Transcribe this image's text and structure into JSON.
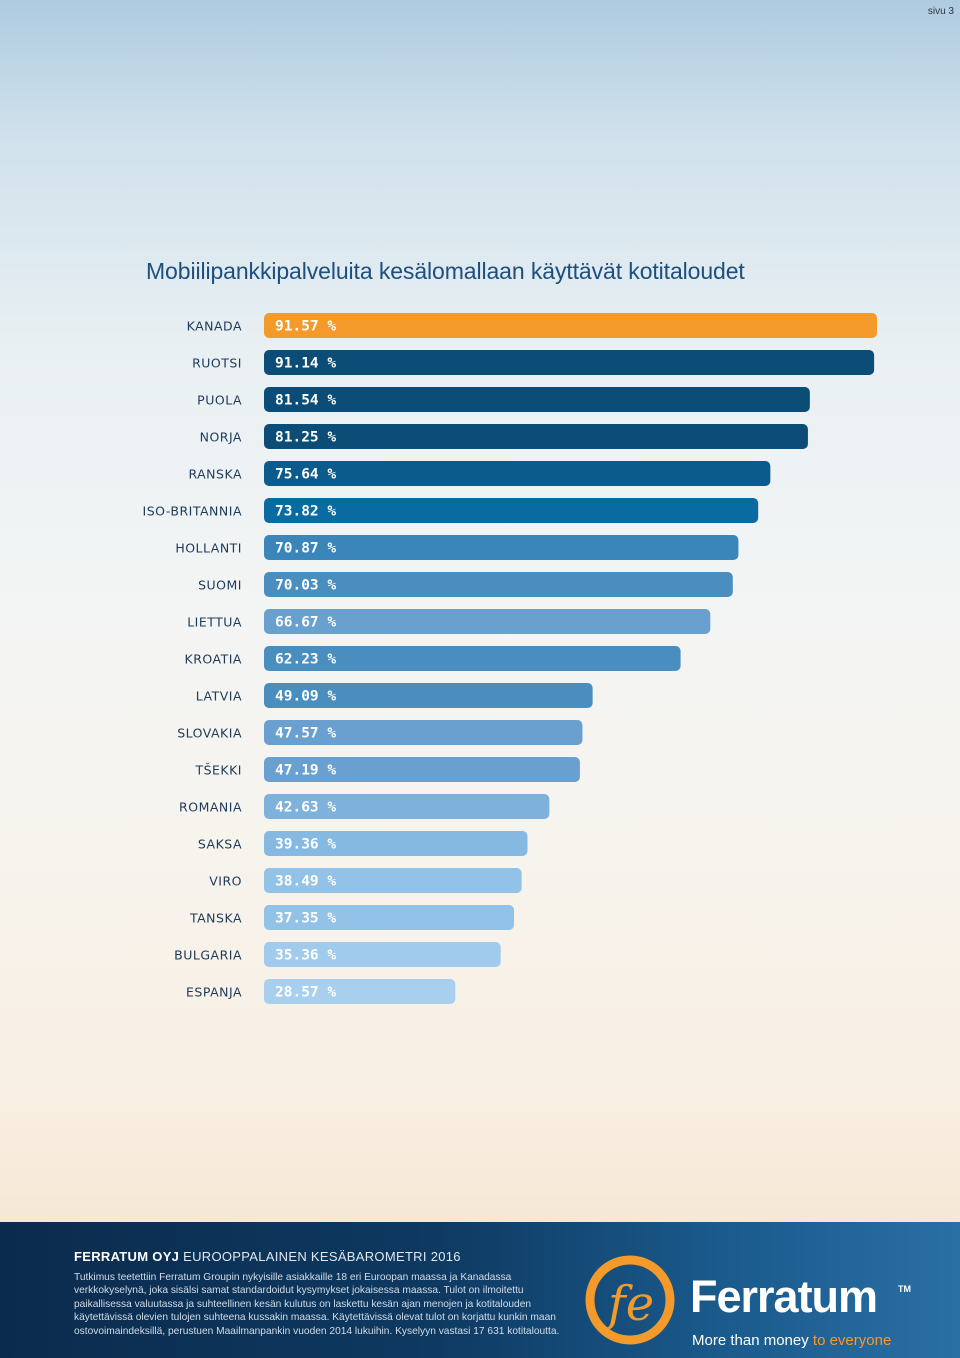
{
  "page_number": "sivu 3",
  "title": "Mobiilipankkipalveluita kesälomallaan käyttävät kotitaloudet",
  "chart_data": {
    "type": "bar",
    "orientation": "horizontal",
    "categories": [
      "KANADA",
      "RUOTSI",
      "PUOLA",
      "NORJA",
      "RANSKA",
      "ISO-BRITANNIA",
      "HOLLANTI",
      "SUOMI",
      "LIETTUA",
      "KROATIA",
      "LATVIA",
      "SLOVAKIA",
      "TŠEKKI",
      "ROMANIA",
      "SAKSA",
      "VIRO",
      "TANSKA",
      "BULGARIA",
      "ESPANJA"
    ],
    "values": [
      91.57,
      91.14,
      81.54,
      81.25,
      75.64,
      73.82,
      70.87,
      70.03,
      66.67,
      62.23,
      49.09,
      47.57,
      47.19,
      42.63,
      39.36,
      38.49,
      37.35,
      35.36,
      28.57
    ],
    "labels": [
      "91.57 %",
      "91.14 %",
      "81.54 %",
      "81.25 %",
      "75.64 %",
      "73.82 %",
      "70.87 %",
      "70.03 %",
      "66.67 %",
      "62.23 %",
      "49.09 %",
      "47.57 %",
      "47.19 %",
      "42.63 %",
      "39.36 %",
      "38.49 %",
      "37.35 %",
      "35.36 %",
      "28.57 %"
    ],
    "colors": [
      "#f39a2b",
      "#0b4d77",
      "#0b4d77",
      "#0b4d77",
      "#0b5b8d",
      "#0a6ba3",
      "#3a86bb",
      "#4a8ec0",
      "#6aa0cf",
      "#4a8ec0",
      "#4a8ec0",
      "#6aa0cf",
      "#6aa0cf",
      "#7eb1dc",
      "#86b9e2",
      "#92c2e8",
      "#92c2e8",
      "#a1cbed",
      "#a8d0ee"
    ],
    "title": "Mobiilipankkipalveluita kesälomallaan käyttävät kotitaloudet"
  },
  "footer": {
    "heading_bold": "FERRATUM OYJ",
    "heading_rest": "EUROOPPALAINEN KESÄBAROMETRI 2016",
    "text": "Tutkimus teetettiin Ferratum Groupin nykyisille asiakkaille 18 eri Euroopan maassa ja Kanadassa verkkokyselynä, joka sisälsi samat standardoidut kysymykset jokaisessa maassa. Tulot on ilmoitettu paikallisessa valuutassa ja suhteellinen kesän kulutus on laskettu kesän ajan menojen ja kotitalouden käytettävissä olevien tulojen suhteena kussakin maassa. Käytettävissä olevat tulot on korjattu kunkin maan ostovoimaindeksillä, perustuen Maailmanpankin vuoden 2014 lukuihin. Kyselyyn vastasi 17 631 kotitaloutta.",
    "logo_name": "Ferratum",
    "logo_tm": "TM",
    "tagline_a": "More than money",
    "tagline_b": "to everyone"
  }
}
